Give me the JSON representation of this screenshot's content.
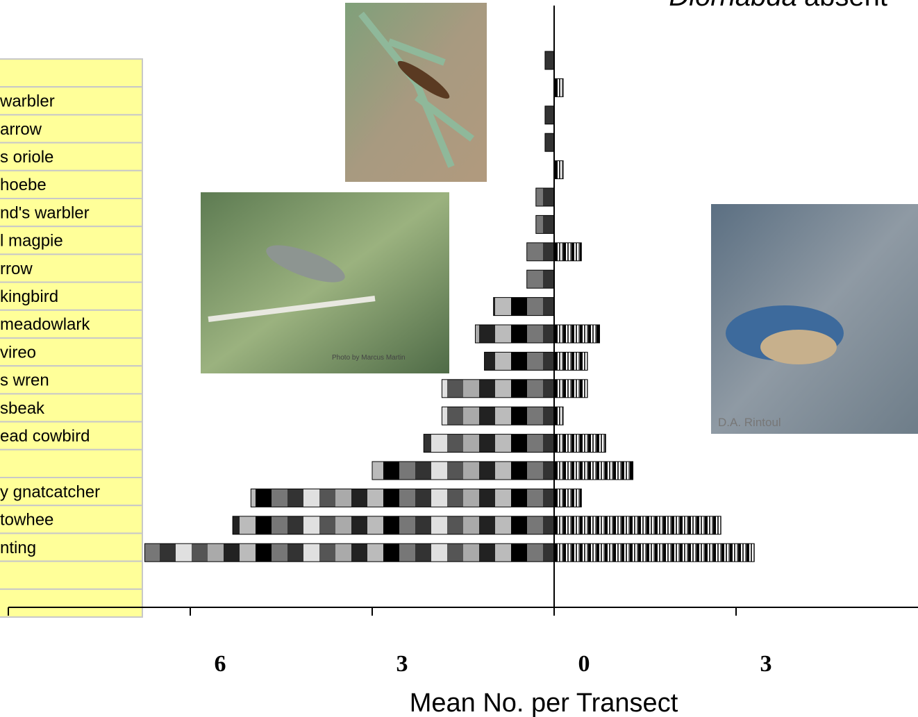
{
  "chart_data": {
    "type": "bar",
    "orientation": "horizontal",
    "title_parts": [
      "Diorhabda",
      "absent"
    ],
    "x_label": "Mean No. per Transect",
    "categories": [
      null,
      "warbler",
      "arrow",
      "s oriole",
      "hoebe",
      "nd's warbler",
      "l magpie",
      "rrow",
      "kingbird",
      "meadowlark",
      "vireo",
      "s wren",
      "sbeak",
      "ead cowbird",
      null,
      "y gnatcatcher",
      "towhee",
      "nting",
      null
    ],
    "series": [
      {
        "side": "left",
        "color": "#000000",
        "values": [
          0.15,
          0,
          0.15,
          0.15,
          0,
          0.3,
          0.3,
          0.45,
          0.45,
          1.0,
          1.3,
          1.15,
          1.85,
          1.85,
          2.15,
          3.0,
          5.0,
          5.3,
          6.75
        ]
      },
      {
        "side": "right",
        "color": "#000000",
        "values": [
          0,
          0.15,
          0,
          0,
          0.15,
          0,
          0,
          0.45,
          0,
          0,
          0.75,
          0.55,
          0.55,
          0.15,
          0.85,
          1.3,
          0.45,
          2.75,
          3.3
        ]
      }
    ],
    "xlim": [
      -9,
      6
    ],
    "xticks": [
      {
        "value": -6,
        "label": "6"
      },
      {
        "value": -3,
        "label": "3"
      },
      0,
      3
    ],
    "annotations": [
      "Photo by Marcus Martin",
      "D.A. Rintoul"
    ]
  }
}
